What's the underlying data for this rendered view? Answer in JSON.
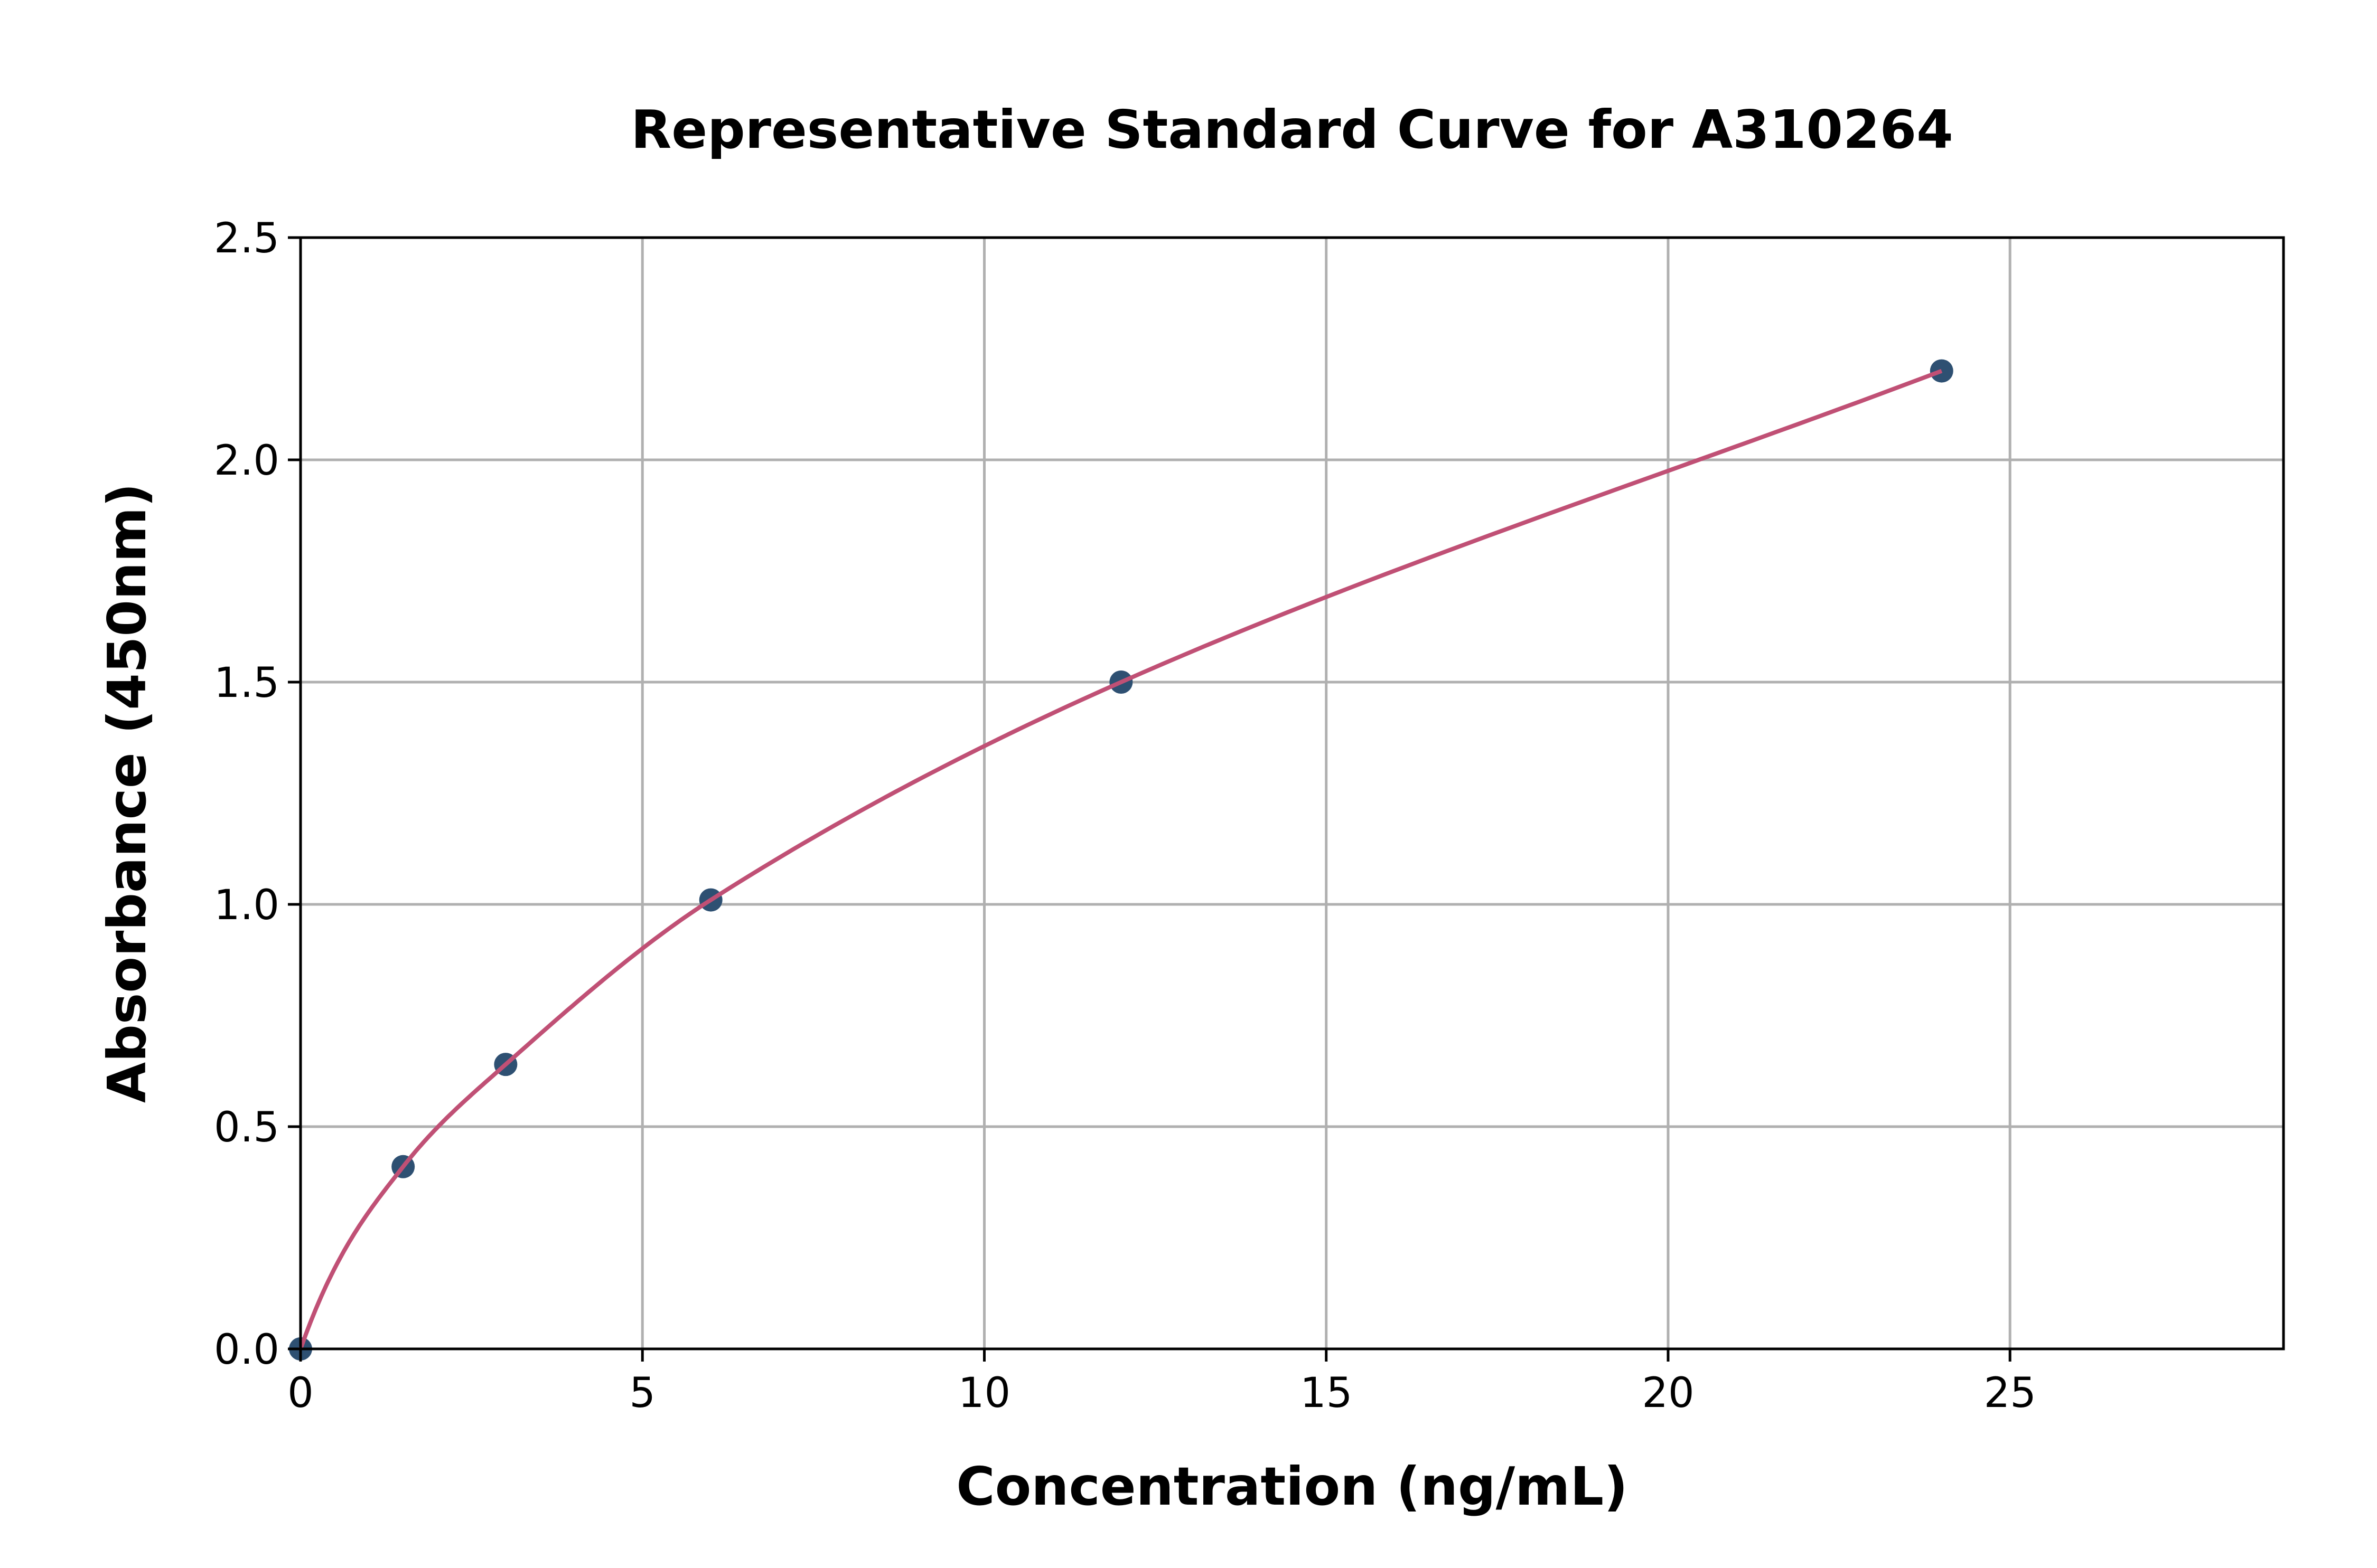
{
  "chart_data": {
    "type": "scatter",
    "title": "Representative Standard Curve for A310264",
    "xlabel": "Concentration (ng/mL)",
    "ylabel": "Absorbance (450nm)",
    "xlim": [
      0,
      29
    ],
    "ylim": [
      0,
      2.5
    ],
    "xticks": [
      "0",
      "5",
      "10",
      "15",
      "20",
      "25"
    ],
    "yticks": [
      "0.0",
      "0.5",
      "1.0",
      "1.5",
      "2.0",
      "2.5"
    ],
    "grid": true,
    "points": {
      "x": [
        0,
        1.5,
        3,
        6,
        12,
        24
      ],
      "y": [
        0,
        0.41,
        0.64,
        1.01,
        1.5,
        2.2
      ]
    },
    "fit_curve": true,
    "colors": {
      "points": "#2e5072",
      "curve": "#c05075",
      "grid": "#b0b0b0"
    }
  }
}
